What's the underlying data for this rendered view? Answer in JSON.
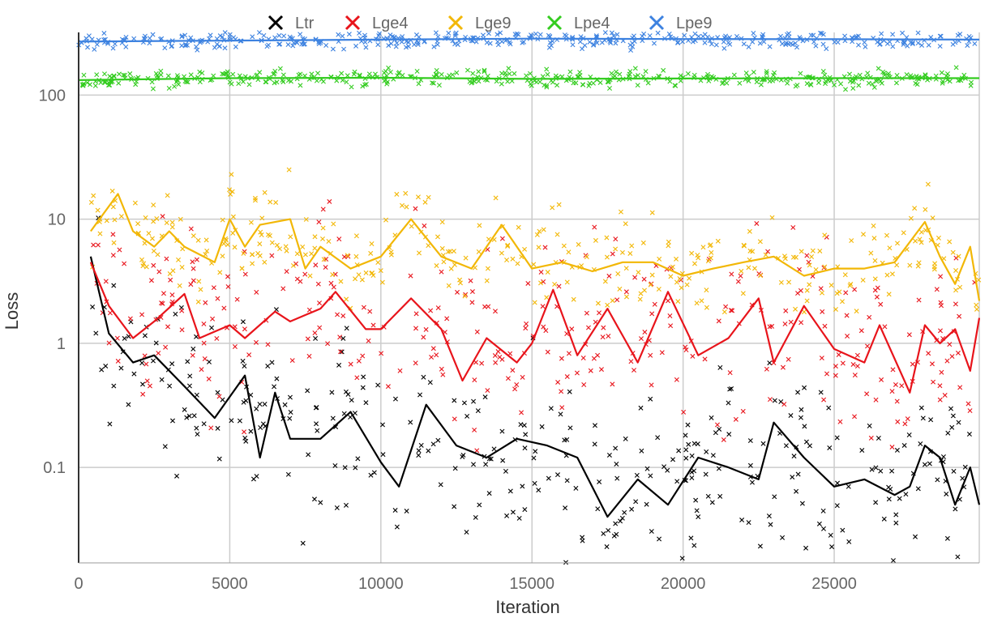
{
  "chart_data": {
    "type": "line",
    "title": "",
    "xlabel": "Iteration",
    "ylabel": "Loss",
    "x_scale": "linear",
    "y_scale": "log",
    "xlim": [
      0,
      29800
    ],
    "ylim": [
      0.017,
      320
    ],
    "x_ticks": [
      0,
      5000,
      10000,
      15000,
      20000,
      25000
    ],
    "x_tick_labels": [
      "0",
      "5000",
      "10000",
      "15000",
      "20000",
      "25000"
    ],
    "y_ticks": [
      0.1,
      1,
      10,
      100
    ],
    "y_tick_labels": [
      "0.1",
      "1",
      "10",
      "100"
    ],
    "grid": true,
    "legend_position": "top",
    "markers": "x with scattered samples around a smoothed line",
    "series": [
      {
        "name": "Ltr",
        "color": "#000000",
        "x": [
          400,
          1000,
          1800,
          2500,
          3500,
          4500,
          5500,
          6000,
          6500,
          7000,
          8000,
          9000,
          10000,
          10600,
          11500,
          12500,
          13500,
          14500,
          15500,
          16500,
          17500,
          18500,
          19500,
          20500,
          21500,
          22500,
          23000,
          24000,
          25000,
          26000,
          27000,
          27500,
          28000,
          28500,
          29000,
          29500,
          29800
        ],
        "values": [
          5.0,
          1.2,
          0.7,
          0.8,
          0.45,
          0.25,
          0.55,
          0.12,
          0.4,
          0.17,
          0.17,
          0.28,
          0.11,
          0.07,
          0.32,
          0.15,
          0.12,
          0.17,
          0.15,
          0.12,
          0.04,
          0.08,
          0.05,
          0.12,
          0.1,
          0.08,
          0.23,
          0.12,
          0.07,
          0.08,
          0.06,
          0.07,
          0.15,
          0.12,
          0.05,
          0.1,
          0.05
        ]
      },
      {
        "name": "Lge4",
        "color": "#e8141b",
        "x": [
          400,
          1000,
          1800,
          2500,
          3500,
          4000,
          5000,
          5500,
          6500,
          7000,
          8000,
          8500,
          9500,
          10000,
          11000,
          12000,
          12700,
          13500,
          14500,
          15000,
          15700,
          16500,
          17500,
          18500,
          19500,
          20500,
          21500,
          22500,
          23000,
          24000,
          25000,
          26000,
          26500,
          27500,
          28000,
          28500,
          29000,
          29500,
          29800
        ],
        "values": [
          4.5,
          2.0,
          1.1,
          1.5,
          2.5,
          1.1,
          1.4,
          1.1,
          1.8,
          1.5,
          1.9,
          2.6,
          1.3,
          1.3,
          2.3,
          1.3,
          0.5,
          1.1,
          0.7,
          1.0,
          2.7,
          0.8,
          1.9,
          0.7,
          2.6,
          0.8,
          1.1,
          2.3,
          0.7,
          2.0,
          0.9,
          0.7,
          1.4,
          0.4,
          1.4,
          1.0,
          1.3,
          0.6,
          1.6
        ]
      },
      {
        "name": "Lge9",
        "color": "#f2b705",
        "x": [
          400,
          1300,
          1800,
          2500,
          3000,
          3500,
          4500,
          5000,
          5500,
          6000,
          7000,
          7500,
          8000,
          9000,
          10000,
          11000,
          12000,
          13000,
          14000,
          15000,
          16000,
          17000,
          18000,
          19000,
          20000,
          21000,
          22000,
          23000,
          24000,
          25000,
          26000,
          27000,
          28000,
          28500,
          29000,
          29500,
          29800
        ],
        "values": [
          8.0,
          16.0,
          8.0,
          6.0,
          8.0,
          6.0,
          4.5,
          10.0,
          6.0,
          9.0,
          10.0,
          4.0,
          6.0,
          4.0,
          5.0,
          10.0,
          5.0,
          4.0,
          9.0,
          4.0,
          4.5,
          3.8,
          4.5,
          4.5,
          3.5,
          4.0,
          4.5,
          5.0,
          3.5,
          4.0,
          4.0,
          4.5,
          9.5,
          5.0,
          3.0,
          6.0,
          2.2
        ]
      },
      {
        "name": "Lpe4",
        "color": "#33cc1f",
        "x": [
          0,
          5000,
          10000,
          15000,
          20000,
          25000,
          29800
        ],
        "values": [
          132,
          137,
          138,
          135,
          136,
          137,
          137
        ]
      },
      {
        "name": "Lpe9",
        "color": "#3d82e0",
        "x": [
          0,
          5000,
          10000,
          15000,
          20000,
          25000,
          29800
        ],
        "values": [
          270,
          275,
          280,
          285,
          283,
          282,
          280
        ]
      }
    ]
  }
}
